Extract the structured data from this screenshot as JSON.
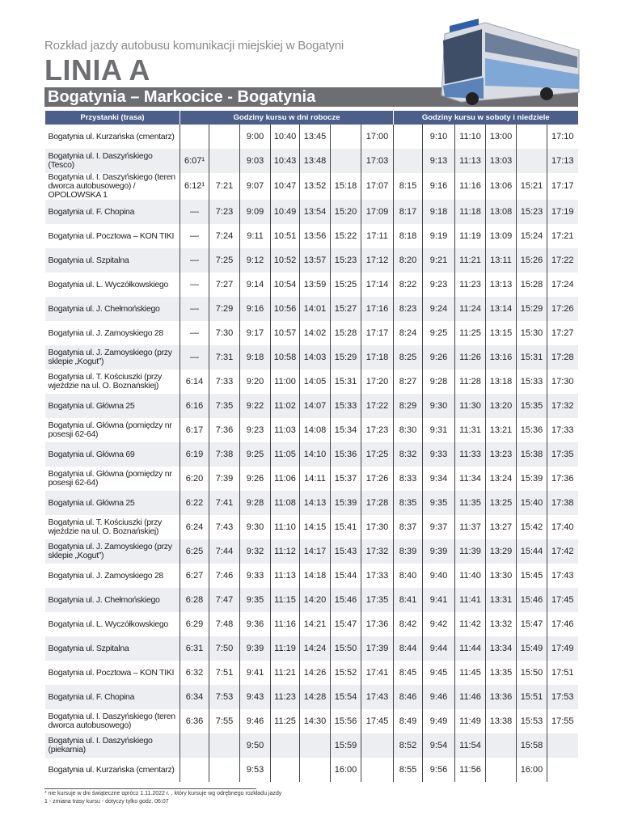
{
  "header": {
    "subtitle": "Rozkład jazdy autobusu komunikacji miejskiej w Bogatyni",
    "title": "LINIA A",
    "route": "Bogatynia – Markocice - Bogatynia"
  },
  "table": {
    "headers": {
      "stops": "Przystanki (trasa)",
      "weekday": "Godziny kursu w dni robocze",
      "weekend": "Godziny kursu w soboty i niedziele"
    },
    "rows": [
      {
        "stop": "Bogatynia ul. Kurzańska (cmentarz)",
        "weekday": [
          null,
          null,
          "9:00",
          "10:40",
          "13:45",
          null,
          "17:00"
        ],
        "weekend": [
          null,
          "9:10",
          "11:10",
          "13:00",
          null,
          "17:10"
        ]
      },
      {
        "stop": "Bogatynia ul. I. Daszyńskiego (Tesco)",
        "weekday": [
          "6:07¹",
          null,
          "9:03",
          "10:43",
          "13:48",
          null,
          "17:03"
        ],
        "weekend": [
          null,
          "9:13",
          "11:13",
          "13:03",
          null,
          "17:13"
        ]
      },
      {
        "stop": "Bogatynia ul. I. Daszyńskiego (teren dworca autobusowego) / OPOLOWSKA 1",
        "weekday": [
          "6:12¹",
          "7:21",
          "9:07",
          "10:47",
          "13:52",
          "15:18",
          "17:07"
        ],
        "weekend": [
          "8:15",
          "9:16",
          "11:16",
          "13:06",
          "15:21",
          "17:17"
        ]
      },
      {
        "stop": "Bogatynia ul. F. Chopina",
        "weekday": [
          "—",
          "7:23",
          "9:09",
          "10:49",
          "13:54",
          "15:20",
          "17:09"
        ],
        "weekend": [
          "8:17",
          "9:18",
          "11:18",
          "13:08",
          "15:23",
          "17:19"
        ]
      },
      {
        "stop": "Bogatynia ul. Pocztowa – KON TIKI",
        "weekday": [
          "—",
          "7:24",
          "9:11",
          "10:51",
          "13:56",
          "15:22",
          "17:11"
        ],
        "weekend": [
          "8:18",
          "9:19",
          "11:19",
          "13:09",
          "15:24",
          "17:21"
        ]
      },
      {
        "stop": "Bogatynia ul. Szpitalna",
        "weekday": [
          "—",
          "7:25",
          "9:12",
          "10:52",
          "13:57",
          "15:23",
          "17:12"
        ],
        "weekend": [
          "8:20",
          "9:21",
          "11:21",
          "13:11",
          "15:26",
          "17:22"
        ]
      },
      {
        "stop": "Bogatynia ul. L. Wyczółkowskiego",
        "weekday": [
          "—",
          "7:27",
          "9:14",
          "10:54",
          "13:59",
          "15:25",
          "17:14"
        ],
        "weekend": [
          "8:22",
          "9:23",
          "11:23",
          "13:13",
          "15:28",
          "17:24"
        ]
      },
      {
        "stop": "Bogatynia ul. J. Chełmońskiego",
        "weekday": [
          "—",
          "7:29",
          "9:16",
          "10:56",
          "14:01",
          "15:27",
          "17:16"
        ],
        "weekend": [
          "8:23",
          "9:24",
          "11:24",
          "13:14",
          "15:29",
          "17:26"
        ]
      },
      {
        "stop": "Bogatynia ul. J. Zamoyskiego 28",
        "weekday": [
          "—",
          "7:30",
          "9:17",
          "10:57",
          "14:02",
          "15:28",
          "17:17"
        ],
        "weekend": [
          "8:24",
          "9:25",
          "11:25",
          "13:15",
          "15:30",
          "17:27"
        ]
      },
      {
        "stop": "Bogatynia ul. J. Zamoyskiego (przy sklepie „Kogut”)",
        "weekday": [
          "—",
          "7:31",
          "9:18",
          "10:58",
          "14:03",
          "15:29",
          "17:18"
        ],
        "weekend": [
          "8:25",
          "9:26",
          "11:26",
          "13:16",
          "15:31",
          "17:28"
        ]
      },
      {
        "stop": "Bogatynia ul. T. Kościuszki (przy wjeździe na ul. O. Boznańskiej)",
        "weekday": [
          "6:14",
          "7:33",
          "9:20",
          "11:00",
          "14:05",
          "15:31",
          "17:20"
        ],
        "weekend": [
          "8:27",
          "9:28",
          "11:28",
          "13:18",
          "15:33",
          "17:30"
        ]
      },
      {
        "stop": "Bogatynia ul. Główna 25",
        "weekday": [
          "6:16",
          "7:35",
          "9:22",
          "11:02",
          "14:07",
          "15:33",
          "17:22"
        ],
        "weekend": [
          "8:29",
          "9:30",
          "11:30",
          "13:20",
          "15:35",
          "17:32"
        ]
      },
      {
        "stop": "Bogatynia ul. Główna (pomiędzy nr posesji 62-64)",
        "weekday": [
          "6:17",
          "7:36",
          "9:23",
          "11:03",
          "14:08",
          "15:34",
          "17:23"
        ],
        "weekend": [
          "8:30",
          "9:31",
          "11:31",
          "13:21",
          "15:36",
          "17:33"
        ]
      },
      {
        "stop": "Bogatynia ul. Główna 69",
        "weekday": [
          "6:19",
          "7:38",
          "9:25",
          "11:05",
          "14:10",
          "15:36",
          "17:25"
        ],
        "weekend": [
          "8:32",
          "9:33",
          "11:33",
          "13:23",
          "15:38",
          "17:35"
        ]
      },
      {
        "stop": "Bogatynia ul. Główna (pomiędzy nr posesji 62-64)",
        "weekday": [
          "6:20",
          "7:39",
          "9:26",
          "11:06",
          "14:11",
          "15:37",
          "17:26"
        ],
        "weekend": [
          "8:33",
          "9:34",
          "11:34",
          "13:24",
          "15:39",
          "17:36"
        ]
      },
      {
        "stop": "Bogatynia ul. Główna 25",
        "weekday": [
          "6:22",
          "7:41",
          "9:28",
          "11:08",
          "14:13",
          "15:39",
          "17:28"
        ],
        "weekend": [
          "8:35",
          "9:35",
          "11:35",
          "13:25",
          "15:40",
          "17:38"
        ]
      },
      {
        "stop": "Bogatynia ul. T. Kościuszki (przy wjeździe na ul. O. Boznańskiej)",
        "weekday": [
          "6:24",
          "7:43",
          "9:30",
          "11:10",
          "14:15",
          "15:41",
          "17:30"
        ],
        "weekend": [
          "8:37",
          "9:37",
          "11:37",
          "13:27",
          "15:42",
          "17:40"
        ]
      },
      {
        "stop": "Bogatynia ul. J. Zamoyskiego (przy sklepie „Kogut”)",
        "weekday": [
          "6:25",
          "7:44",
          "9:32",
          "11:12",
          "14:17",
          "15:43",
          "17:32"
        ],
        "weekend": [
          "8:39",
          "9:39",
          "11:39",
          "13:29",
          "15:44",
          "17:42"
        ]
      },
      {
        "stop": "Bogatynia ul. J. Zamoyskiego 28",
        "weekday": [
          "6:27",
          "7:46",
          "9:33",
          "11:13",
          "14:18",
          "15:44",
          "17:33"
        ],
        "weekend": [
          "8:40",
          "9:40",
          "11:40",
          "13:30",
          "15:45",
          "17:43"
        ]
      },
      {
        "stop": "Bogatynia ul. J. Chełmońskiego",
        "weekday": [
          "6:28",
          "7:47",
          "9:35",
          "11:15",
          "14:20",
          "15:46",
          "17:35"
        ],
        "weekend": [
          "8:41",
          "9:41",
          "11:41",
          "13:31",
          "15:46",
          "17:45"
        ]
      },
      {
        "stop": "Bogatynia ul. L. Wyczółkowskiego",
        "weekday": [
          "6:29",
          "7:48",
          "9:36",
          "11:16",
          "14:21",
          "15:47",
          "17:36"
        ],
        "weekend": [
          "8:42",
          "9:42",
          "11:42",
          "13:32",
          "15:47",
          "17:46"
        ]
      },
      {
        "stop": "Bogatynia ul. Szpitalna",
        "weekday": [
          "6:31",
          "7:50",
          "9:39",
          "11:19",
          "14:24",
          "15:50",
          "17:39"
        ],
        "weekend": [
          "8:44",
          "9:44",
          "11:44",
          "13:34",
          "15:49",
          "17:49"
        ]
      },
      {
        "stop": "Bogatynia ul. Pocztowa – KON TIKI",
        "weekday": [
          "6:32",
          "7:51",
          "9:41",
          "11:21",
          "14:26",
          "15:52",
          "17:41"
        ],
        "weekend": [
          "8:45",
          "9:45",
          "11:45",
          "13:35",
          "15:50",
          "17:51"
        ]
      },
      {
        "stop": "Bogatynia ul. F. Chopina",
        "weekday": [
          "6:34",
          "7:53",
          "9:43",
          "11:23",
          "14:28",
          "15:54",
          "17:43"
        ],
        "weekend": [
          "8:46",
          "9:46",
          "11:46",
          "13:36",
          "15:51",
          "17:53"
        ]
      },
      {
        "stop": "Bogatynia ul. I. Daszyńskiego (teren dworca autobusowego)",
        "weekday": [
          "6:36",
          "7:55",
          "9:46",
          "11:25",
          "14:30",
          "15:56",
          "17:45"
        ],
        "weekend": [
          "8:49",
          "9:49",
          "11:49",
          "13:38",
          "15:53",
          "17:55"
        ]
      },
      {
        "stop": "Bogatynia ul. I. Daszyńskiego (piekarnia)",
        "weekday": [
          null,
          null,
          "9:50",
          null,
          null,
          "15:59",
          null
        ],
        "weekend": [
          "8:52",
          "9:54",
          "11:54",
          null,
          "15:58",
          null
        ]
      },
      {
        "stop": "Bogatynia ul. Kurzańska (cmentarz)",
        "weekday": [
          null,
          null,
          "9:53",
          null,
          null,
          "16:00",
          null
        ],
        "weekend": [
          "8:55",
          "9:56",
          "11:56",
          null,
          "16:00",
          null
        ]
      }
    ]
  },
  "footnotes": [
    "* nie kursuje w dni świąteczne oprócz 1.11.2022 r. , który kursuje wg odrębnego rozkładu jazdy",
    "1 - zmiana trasy kursu - dotyczy tylko godz. 06:07"
  ]
}
